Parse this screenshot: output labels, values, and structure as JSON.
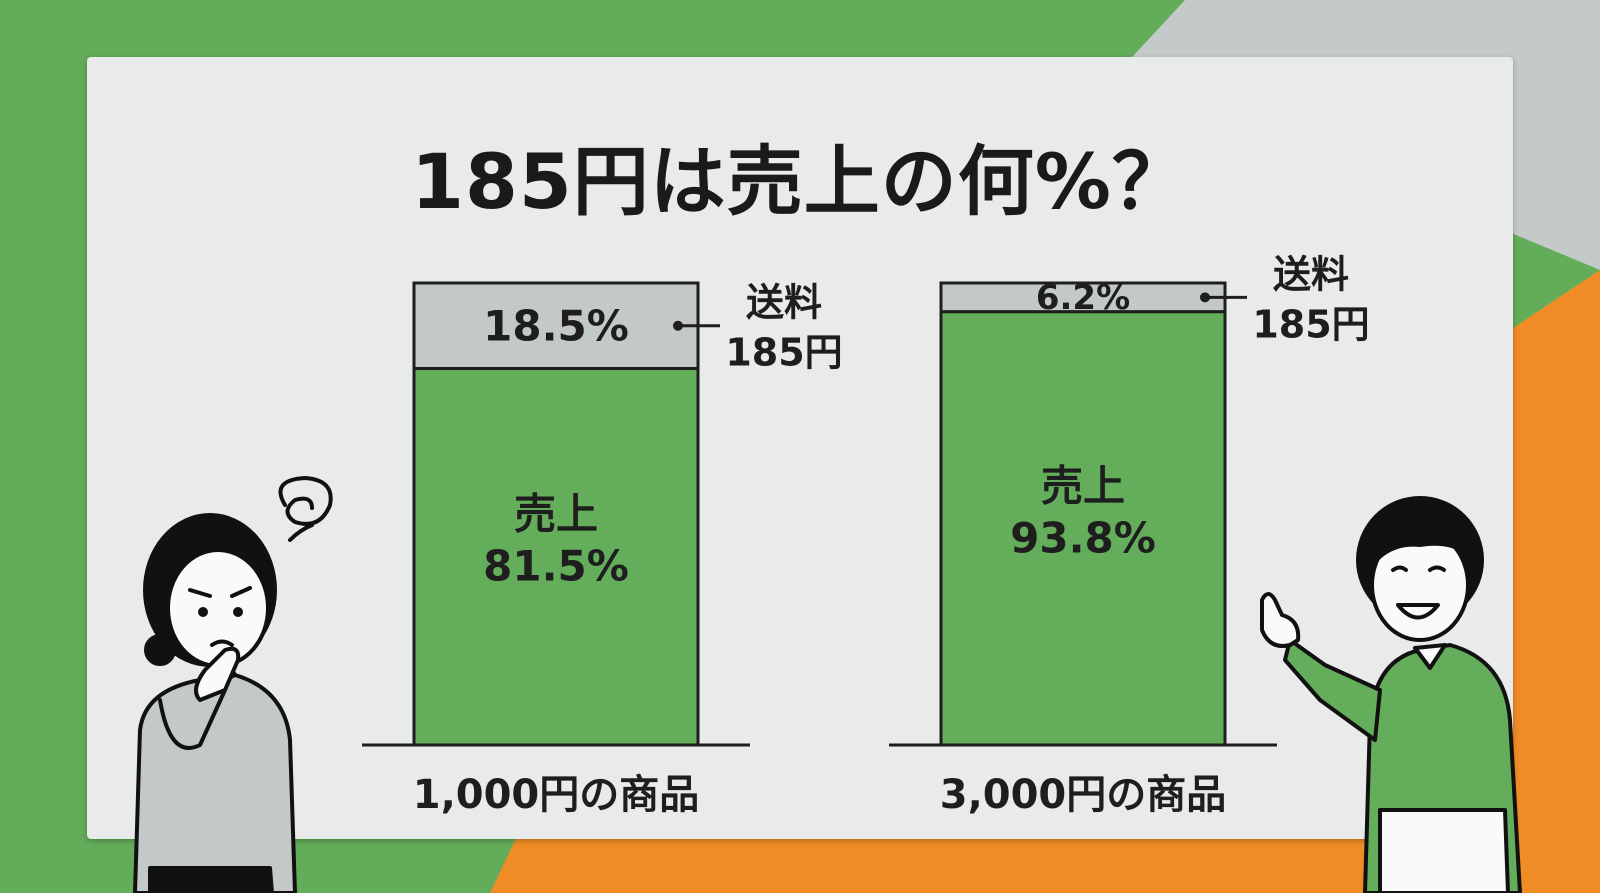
{
  "title": "185円は売上の何%？",
  "colors": {
    "bg_green": "#63ad5a",
    "bg_gray": "#c4c9c9",
    "bg_orange": "#f08c26",
    "panel": "#e9eaea",
    "sales": "#64ad5a",
    "shipping": "#c3c8c8"
  },
  "chart_data": {
    "type": "bar",
    "stacked": true,
    "categories": [
      "1,000円の商品",
      "3,000円の商品"
    ],
    "series": [
      {
        "name": "売上",
        "values": [
          81.5,
          93.8
        ],
        "labels": [
          "81.5%",
          "93.8%"
        ]
      },
      {
        "name": "送料",
        "values": [
          18.5,
          6.2
        ],
        "labels": [
          "18.5%",
          "6.2%"
        ]
      }
    ],
    "annotations": [
      {
        "lines": [
          "送料",
          "185円"
        ]
      },
      {
        "lines": [
          "送料",
          "185円"
        ]
      }
    ],
    "ylim": [
      0,
      100
    ]
  },
  "characters": {
    "left": {
      "icon": "confused-woman-icon",
      "thought": "dizzy-swirl-icon"
    },
    "right": {
      "icon": "pointing-man-icon"
    }
  }
}
